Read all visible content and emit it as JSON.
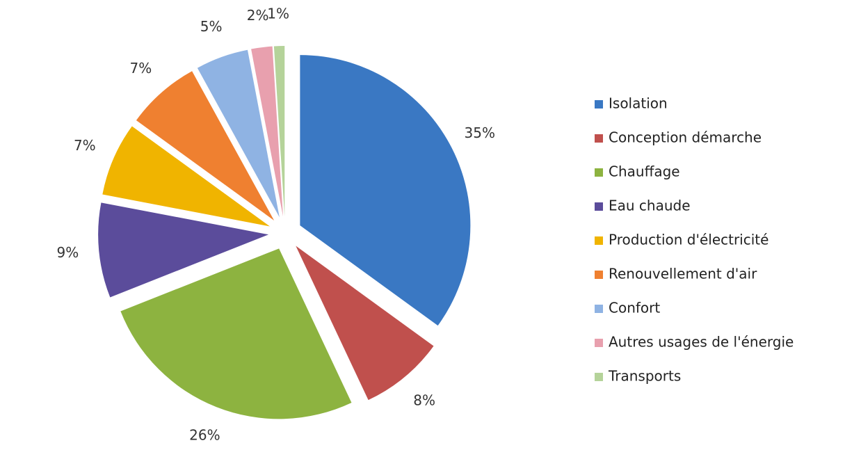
{
  "chart_data": {
    "type": "pie",
    "categories": [
      "Isolation",
      "Conception démarche",
      "Chauffage",
      "Eau chaude",
      "Production d'électricité",
      "Renouvellement d'air",
      "Confort",
      "Autres usages de l'énergie",
      "Transports"
    ],
    "values": [
      35,
      8,
      26,
      9,
      7,
      7,
      5,
      2,
      1
    ],
    "value_labels": [
      "35%",
      "8%",
      "26%",
      "9%",
      "7%",
      "7%",
      "5%",
      "2%",
      "1%"
    ],
    "colors": [
      "#3a78c3",
      "#c0504d",
      "#8db340",
      "#5b4c9b",
      "#f0b400",
      "#ef8030",
      "#8fb3e3",
      "#e8a0ae",
      "#b5d39a"
    ],
    "legend": "right"
  }
}
